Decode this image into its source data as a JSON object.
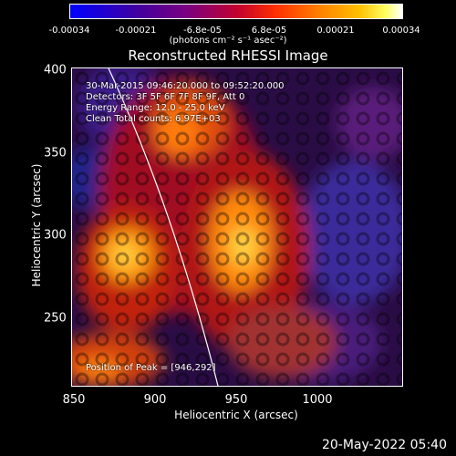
{
  "colorbar": {
    "ticks": [
      "-0.00034",
      "-0.00021",
      "-6.8e-05",
      "6.8e-05",
      "0.00021",
      "0.00034"
    ],
    "unit": "(photons cm⁻² s⁻¹ asec⁻²)"
  },
  "title": "Reconstructed RHESSI Image",
  "annotations": {
    "time": "30-Mar-2015 09:46:20.000 to 09:52:20.000",
    "detectors": "Detectors: 3F 5F 6F 7F 8F 9F, Att 0",
    "energy": "Energy Range: 12.0 - 25.0 keV",
    "method": "Clean     Total counts: 6.97E+03",
    "peak": "Position of Peak = [946,292]"
  },
  "axes": {
    "xlabel": "Heliocentric X (arcsec)",
    "ylabel": "Heliocentric Y (arcsec)",
    "xticks": [
      "850",
      "900",
      "950",
      "1000"
    ],
    "yticks": [
      "400",
      "350",
      "300",
      "250"
    ]
  },
  "footer": "20-May-2022 05:40"
}
